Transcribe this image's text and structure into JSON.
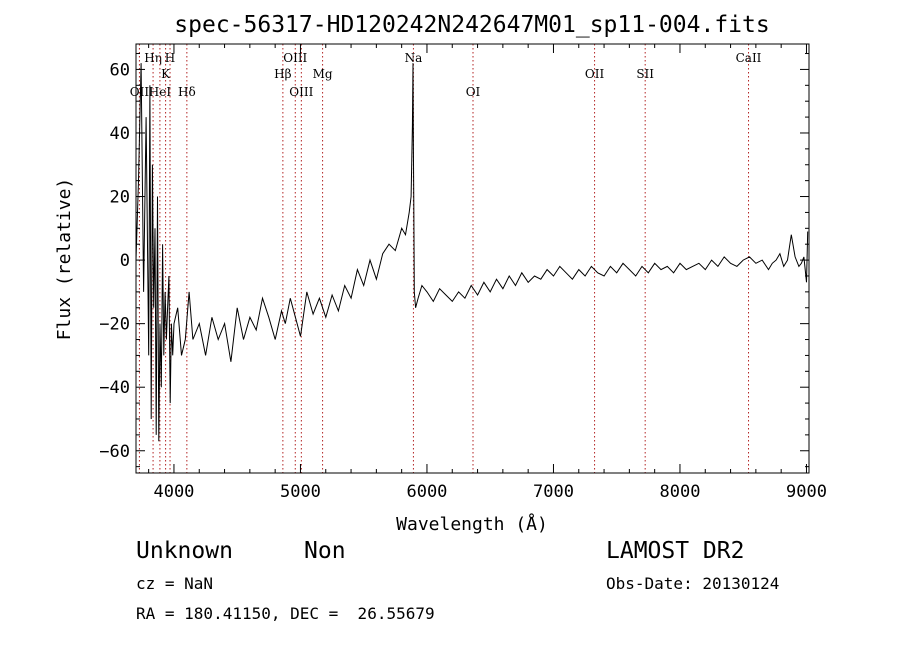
{
  "chart_data": {
    "type": "line",
    "title": "spec-56317-HD120242N242647M01_sp11-004.fits",
    "xlabel": "Wavelength (Å)",
    "ylabel": "Flux (relative)",
    "xlim": [
      3700,
      9020
    ],
    "ylim": [
      -67,
      68
    ],
    "x_ticks": [
      "4000",
      "5000",
      "6000",
      "7000",
      "8000",
      "9000"
    ],
    "y_ticks": [
      "-60",
      "-40",
      "-20",
      "0",
      "20",
      "40",
      "60"
    ],
    "series": [
      {
        "x": [
          3700,
          3720,
          3740,
          3760,
          3780,
          3800,
          3810,
          3820,
          3830,
          3840,
          3850,
          3860,
          3870,
          3880,
          3890,
          3900,
          3910,
          3920,
          3930,
          3940,
          3950,
          3960,
          3970,
          3980,
          3990,
          4000,
          4030,
          4060,
          4090,
          4120,
          4150,
          4200,
          4250,
          4300,
          4350,
          4400,
          4450,
          4500,
          4550,
          4600,
          4650,
          4700,
          4750,
          4800,
          4850,
          4880,
          4920,
          4960,
          5000,
          5050,
          5100,
          5150,
          5200,
          5250,
          5300,
          5350,
          5400,
          5450,
          5500,
          5550,
          5600,
          5650,
          5700,
          5750,
          5800,
          5830,
          5860,
          5875,
          5885,
          5890,
          5893,
          5896,
          5900,
          5910,
          5930,
          5960,
          6000,
          6050,
          6100,
          6150,
          6200,
          6250,
          6300,
          6350,
          6400,
          6450,
          6500,
          6550,
          6600,
          6650,
          6700,
          6750,
          6800,
          6850,
          6900,
          6950,
          7000,
          7050,
          7100,
          7150,
          7200,
          7250,
          7300,
          7350,
          7400,
          7450,
          7500,
          7550,
          7600,
          7650,
          7700,
          7750,
          7800,
          7850,
          7900,
          7950,
          8000,
          8050,
          8100,
          8150,
          8200,
          8250,
          8300,
          8350,
          8400,
          8450,
          8500,
          8550,
          8600,
          8650,
          8700,
          8730,
          8760,
          8790,
          8820,
          8850,
          8880,
          8910,
          8940,
          8960,
          8980,
          9000,
          9010
        ],
        "y": [
          0,
          25,
          62,
          -10,
          45,
          -30,
          55,
          -50,
          30,
          -15,
          10,
          -55,
          20,
          -57,
          -20,
          -40,
          5,
          -30,
          -10,
          -25,
          -15,
          -5,
          -45,
          -20,
          -30,
          -20,
          -15,
          -30,
          -25,
          -10,
          -25,
          -20,
          -30,
          -18,
          -25,
          -20,
          -32,
          -15,
          -25,
          -18,
          -22,
          -12,
          -18,
          -25,
          -16,
          -20,
          -12,
          -18,
          -24,
          -10,
          -17,
          -12,
          -18,
          -11,
          -16,
          -8,
          -12,
          -3,
          -8,
          0,
          -6,
          2,
          5,
          3,
          10,
          8,
          15,
          20,
          42,
          62,
          35,
          18,
          -10,
          -15,
          -12,
          -8,
          -10,
          -13,
          -9,
          -11,
          -13,
          -10,
          -12,
          -8,
          -11,
          -7,
          -10,
          -6,
          -9,
          -5,
          -8,
          -4,
          -7,
          -5,
          -6,
          -3,
          -5,
          -2,
          -4,
          -6,
          -3,
          -5,
          -2,
          -4,
          -5,
          -2,
          -4,
          -1,
          -3,
          -5,
          -2,
          -4,
          -1,
          -3,
          -2,
          -4,
          -1,
          -3,
          -2,
          -1,
          -3,
          0,
          -2,
          1,
          -1,
          -2,
          0,
          1,
          -1,
          0,
          -3,
          -1,
          0,
          2,
          -2,
          0,
          8,
          1,
          -2,
          -1,
          1,
          -7,
          9
        ]
      }
    ],
    "lines": [
      {
        "label": "OII",
        "x": 3727,
        "row": 2
      },
      {
        "label": "Hη",
        "x": 3835,
        "row": 0
      },
      {
        "label": "HeI",
        "x": 3889,
        "row": 2
      },
      {
        "label": "K",
        "x": 3934,
        "row": 1
      },
      {
        "label": "H",
        "x": 3969,
        "row": 0
      },
      {
        "label": "Hδ",
        "x": 4102,
        "row": 2
      },
      {
        "label": "Hβ",
        "x": 4861,
        "row": 1
      },
      {
        "label": "OIII",
        "x": 4959,
        "row": 0
      },
      {
        "label": "OIII",
        "x": 5007,
        "row": 2
      },
      {
        "label": "Mg",
        "x": 5175,
        "row": 1
      },
      {
        "label": "Na",
        "x": 5893,
        "row": 0
      },
      {
        "label": "OI",
        "x": 6364,
        "row": 2
      },
      {
        "label": "OII",
        "x": 7325,
        "row": 1
      },
      {
        "label": "SII",
        "x": 7725,
        "row": 1
      },
      {
        "label": "CaII",
        "x": 8542,
        "row": 0
      }
    ]
  },
  "info": {
    "object": "Unknown",
    "class": "Non",
    "survey": "LAMOST DR2",
    "cz": "cz = NaN",
    "obs_date": "Obs-Date: 20130124",
    "coords": "RA = 180.41150, DEC =  26.55679"
  }
}
